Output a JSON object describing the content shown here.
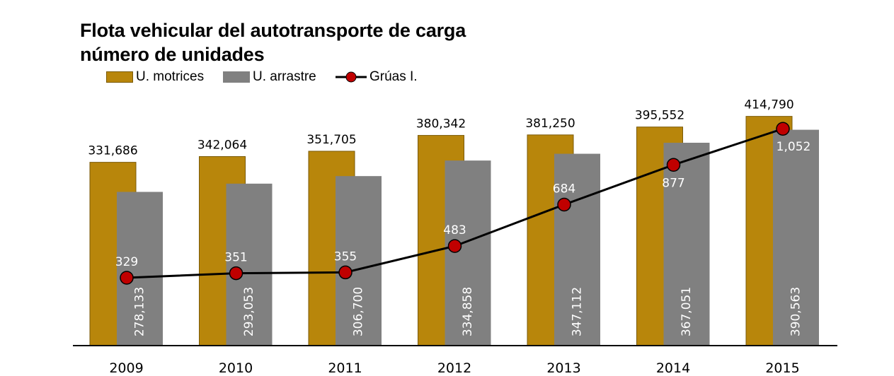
{
  "chart_data": {
    "type": "bar",
    "title": "Flota vehicular del autotransporte de carga",
    "subtitle": "número de unidades",
    "categories": [
      "2009",
      "2010",
      "2011",
      "2012",
      "2013",
      "2014",
      "2015"
    ],
    "series": [
      {
        "name": "U. motrices",
        "type": "bar",
        "color": "#b8860b",
        "values": [
          331686,
          342064,
          351705,
          380342,
          381250,
          395552,
          414790
        ],
        "labels": [
          "331,686",
          "342,064",
          "351,705",
          "380,342",
          "381,250",
          "395,552",
          "414,790"
        ]
      },
      {
        "name": "U. arrastre",
        "type": "bar",
        "color": "#808080",
        "values": [
          278133,
          293053,
          306700,
          334858,
          347112,
          367051,
          390563
        ],
        "labels": [
          "278,133",
          "293,053",
          "306,700",
          "334,858",
          "347,112",
          "367,051",
          "390,563"
        ]
      },
      {
        "name": "Grúas I.",
        "type": "line",
        "color": "#000000",
        "marker_color": "#c00000",
        "values": [
          329,
          351,
          355,
          483,
          684,
          877,
          1052
        ],
        "labels": [
          "329",
          "351",
          "355",
          "483",
          "684",
          "877",
          "1,052"
        ]
      }
    ],
    "xlabel": "",
    "ylabel": "",
    "legend_position": "top-left",
    "grid": false
  }
}
